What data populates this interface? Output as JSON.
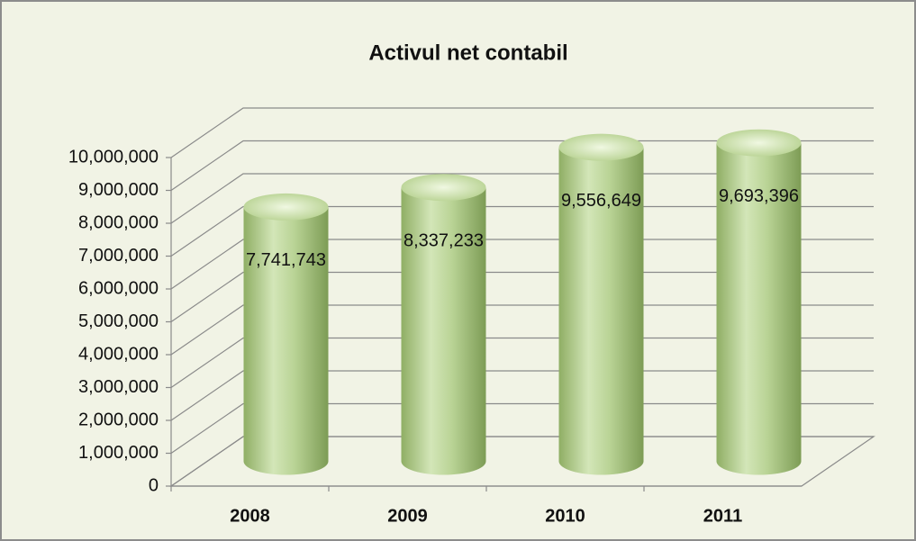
{
  "chart_data": {
    "type": "bar3d",
    "title": "Activul net contabil",
    "categories": [
      "2008",
      "2009",
      "2010",
      "2011"
    ],
    "values": [
      7741743,
      8337233,
      9556649,
      9693396
    ],
    "value_labels": [
      "7,741,743",
      "8,337,233",
      "9,556,649",
      "9,693,396"
    ],
    "color": "#b5cf8e",
    "ylim": [
      0,
      10000000
    ],
    "yticks": [
      0,
      {
        "value": 1000000,
        "label": "1,000,000"
      },
      {
        "value": 2000000,
        "label": "2,000,000"
      },
      {
        "value": 3000000,
        "label": "3,000,000"
      },
      {
        "value": 4000000,
        "label": "4,000,000"
      },
      {
        "value": 5000000,
        "label": "5,000,000"
      },
      {
        "value": 6000000,
        "label": "6,000,000"
      },
      {
        "value": 7000000,
        "label": "7,000,000"
      },
      {
        "value": 8000000,
        "label": "8,000,000"
      },
      {
        "value": 9000000,
        "label": "9,000,000"
      },
      {
        "value": 10000000,
        "label": "10,000,000"
      }
    ],
    "grid": true
  }
}
